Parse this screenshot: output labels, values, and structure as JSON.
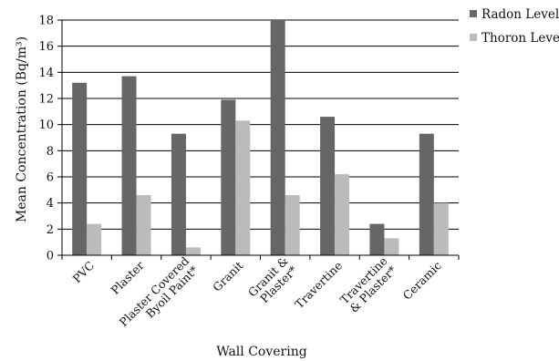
{
  "chart_data": {
    "type": "bar",
    "categories": [
      [
        "PVC"
      ],
      [
        "Plaster"
      ],
      [
        "Plaster Covered",
        "Byoil Paint*"
      ],
      [
        "Granit"
      ],
      [
        "Granit &",
        "Plaster*"
      ],
      [
        "Travertine"
      ],
      [
        "Travertine",
        "& Plaster*"
      ],
      [
        "Ceramic"
      ]
    ],
    "series": [
      {
        "name": "Radon Level",
        "color": "#666666",
        "values": [
          13.2,
          13.7,
          9.3,
          11.9,
          18.0,
          10.6,
          2.4,
          9.3
        ]
      },
      {
        "name": "Thoron Level",
        "color": "#bbbbbb",
        "values": [
          2.4,
          4.6,
          0.6,
          10.3,
          4.6,
          6.2,
          1.3,
          4.0
        ]
      }
    ],
    "yticks": [
      0,
      2,
      4,
      6,
      8,
      10,
      12,
      14,
      16,
      18
    ],
    "ylim": [
      0,
      18
    ],
    "xlabel": "Wall Covering",
    "ylabel": "Mean Concentration (Bq/m³)",
    "grid": true,
    "legend_position": "top-right"
  }
}
